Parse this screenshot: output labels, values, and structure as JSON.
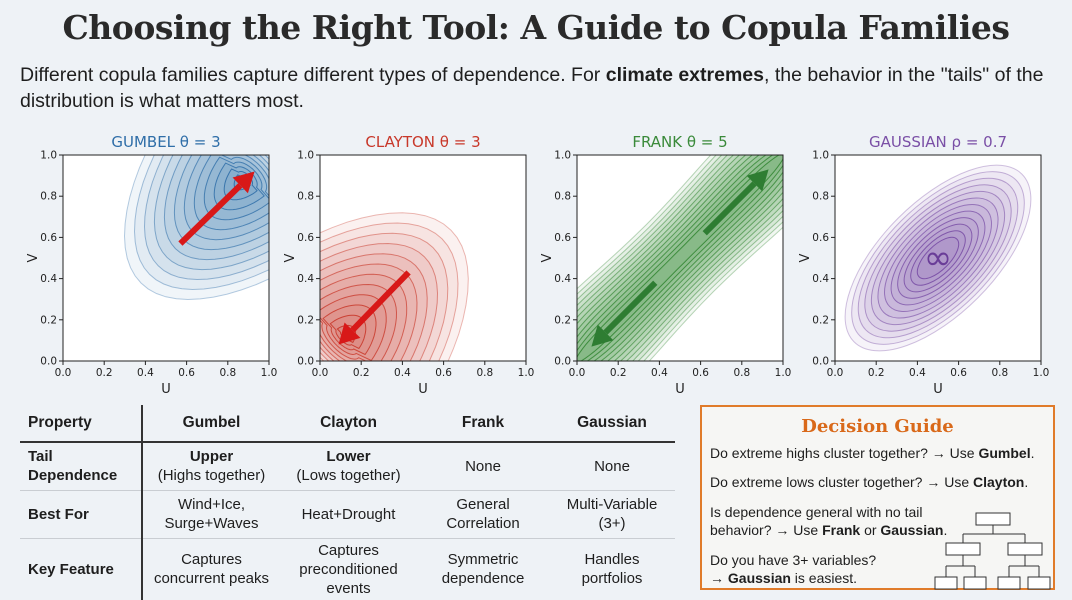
{
  "page": {
    "title": "Choosing the Right Tool: A Guide to Copula Families",
    "subtitle_pre": "Different copula families capture different types of dependence. For ",
    "subtitle_bold": "climate extremes",
    "subtitle_post": ", the behavior in the \"tails\" of the distribution is what matters most."
  },
  "chart_data": [
    {
      "type": "contour",
      "title": "GUMBEL θ = 3",
      "xlabel": "U",
      "ylabel": "V",
      "xlim": [
        0,
        1
      ],
      "ylim": [
        0,
        1
      ],
      "xticks": [
        "0.0",
        "0.2",
        "0.4",
        "0.6",
        "0.8",
        "1.0"
      ],
      "yticks": [
        "0.0",
        "0.2",
        "0.4",
        "0.6",
        "0.8",
        "1.0"
      ],
      "color": "#2f6ea8",
      "arrow_color": "#d81818",
      "annotation": "arrow toward upper-right tail"
    },
    {
      "type": "contour",
      "title": "CLAYTON θ = 3",
      "xlabel": "U",
      "ylabel": "V",
      "xlim": [
        0,
        1
      ],
      "ylim": [
        0,
        1
      ],
      "xticks": [
        "0.0",
        "0.2",
        "0.4",
        "0.6",
        "0.8",
        "1.0"
      ],
      "yticks": [
        "0.0",
        "0.2",
        "0.4",
        "0.6",
        "0.8",
        "1.0"
      ],
      "color": "#c8382a",
      "arrow_color": "#d81818",
      "annotation": "arrow toward lower-left tail"
    },
    {
      "type": "contour",
      "title": "FRANK θ = 5",
      "xlabel": "U",
      "ylabel": "V",
      "xlim": [
        0,
        1
      ],
      "ylim": [
        0,
        1
      ],
      "xticks": [
        "0.0",
        "0.2",
        "0.4",
        "0.6",
        "0.8",
        "1.0"
      ],
      "yticks": [
        "0.0",
        "0.2",
        "0.4",
        "0.6",
        "0.8",
        "1.0"
      ],
      "color": "#3a8a3a",
      "arrow_color": "#2e7d32",
      "annotation": "symmetric arrows both directions"
    },
    {
      "type": "contour",
      "title": "GAUSSIAN ρ = 0.7",
      "xlabel": "U",
      "ylabel": "V",
      "xlim": [
        0,
        1
      ],
      "ylim": [
        0,
        1
      ],
      "xticks": [
        "0.0",
        "0.2",
        "0.4",
        "0.6",
        "0.8",
        "1.0"
      ],
      "yticks": [
        "0.0",
        "0.2",
        "0.4",
        "0.6",
        "0.8",
        "1.0"
      ],
      "color": "#7a4fa6",
      "symbol": "∞"
    }
  ],
  "table": {
    "headers": [
      "Property",
      "Gumbel",
      "Clayton",
      "Frank",
      "Gaussian"
    ],
    "rows": [
      {
        "label": "Tail Dependence",
        "cells": [
          {
            "bold": "Upper",
            "text": "(Highs together)"
          },
          {
            "bold": "Lower",
            "text": "(Lows together)"
          },
          {
            "bold": "",
            "text": "None"
          },
          {
            "bold": "",
            "text": "None"
          }
        ]
      },
      {
        "label": "Best For",
        "cells": [
          {
            "bold": "",
            "text": "Wind+Ice, Surge+Waves"
          },
          {
            "bold": "",
            "text": "Heat+Drought"
          },
          {
            "bold": "",
            "text": "General Correlation"
          },
          {
            "bold": "",
            "text": "Multi-Variable (3+)"
          }
        ]
      },
      {
        "label": "Key Feature",
        "cells": [
          {
            "bold": "",
            "text": "Captures concurrent peaks"
          },
          {
            "bold": "",
            "text": "Captures preconditioned events"
          },
          {
            "bold": "",
            "text": "Symmetric dependence"
          },
          {
            "bold": "",
            "text": "Handles portfolios"
          }
        ]
      }
    ]
  },
  "guide": {
    "title": "Decision Guide",
    "q1_pre": "Do extreme highs cluster together? → Use ",
    "q1_bold": "Gumbel",
    "q1_post": ".",
    "q2_pre": "Do extreme lows cluster together? → Use ",
    "q2_bold": "Clayton",
    "q2_post": ".",
    "q3_line1": "Is dependence general with no tail",
    "q3_pre": "behavior? → Use ",
    "q3_bold1": "Frank",
    "q3_mid": " or ",
    "q3_bold2": "Gaussian",
    "q3_post": ".",
    "q4_line1": "Do you have 3+ variables?",
    "q4_pre": "→ ",
    "q4_bold": "Gaussian",
    "q4_post": " is easiest.",
    "tree_icon": "decision-tree-icon"
  }
}
